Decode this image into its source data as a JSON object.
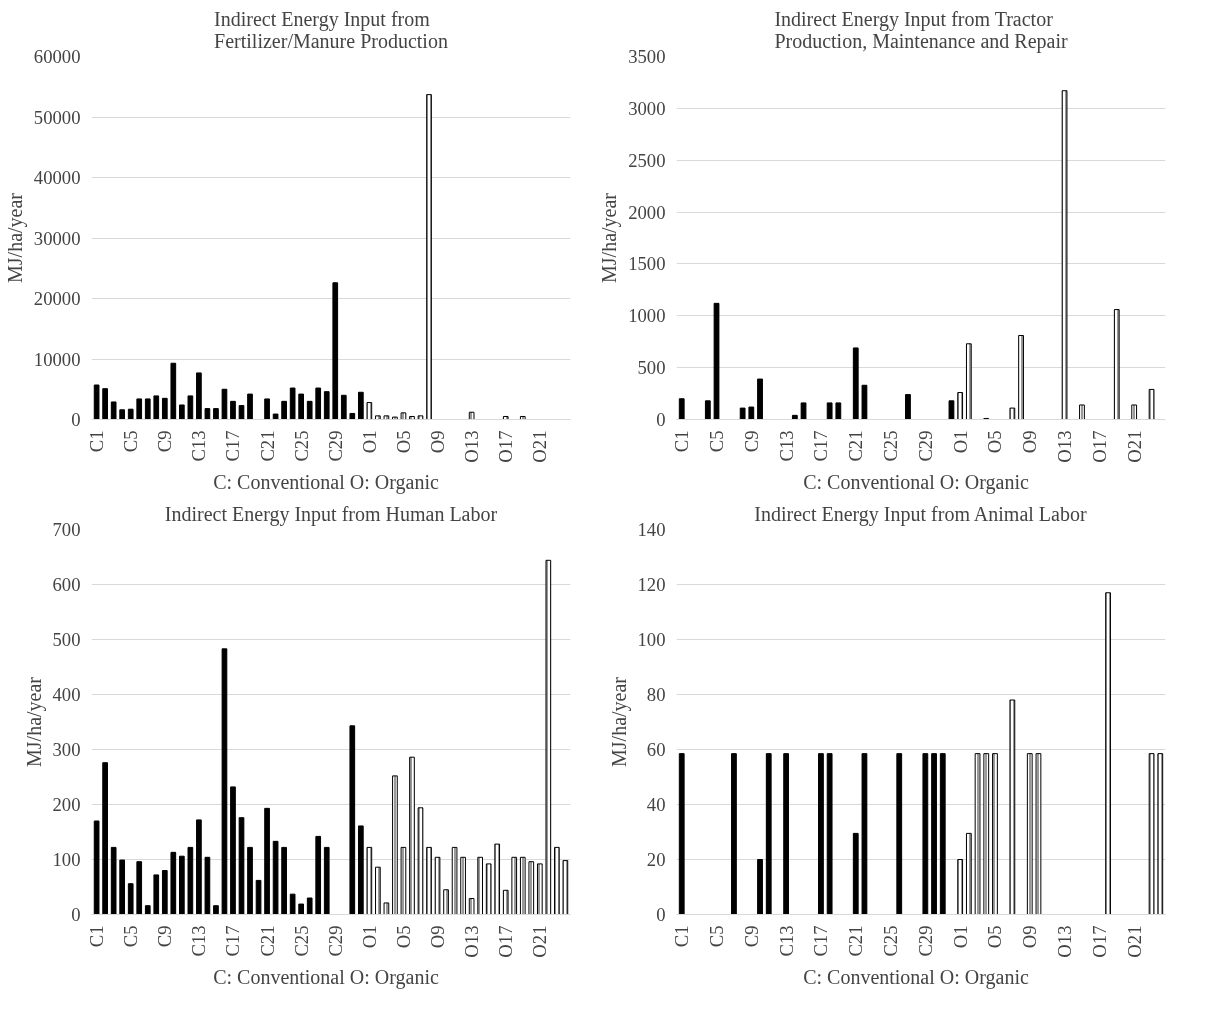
{
  "chart_data": [
    {
      "type": "bar",
      "title": "Indirect Energy Input from\nFertilizer/Manure Production",
      "xlabel": "C: Conventional   O: Organic",
      "ylabel": "MJ/ha/year",
      "categories": [
        "C1",
        null,
        null,
        null,
        "C5",
        null,
        null,
        null,
        "C9",
        null,
        null,
        null,
        "C13",
        null,
        null,
        null,
        "C17",
        null,
        null,
        null,
        "C21",
        null,
        null,
        null,
        "C25",
        null,
        null,
        null,
        "C29",
        null,
        null,
        null,
        "O1",
        null,
        null,
        null,
        "O5",
        null,
        null,
        null,
        "O9",
        null,
        null,
        null,
        "O13",
        null,
        null,
        null,
        "O17",
        null,
        null,
        null,
        "O21",
        null,
        null,
        null
      ],
      "series": [
        {
          "color": "#000000",
          "values": [
            5700,
            5100,
            2900,
            1600,
            1700,
            3400,
            3400,
            3900,
            3500,
            9300,
            2400,
            3900,
            7700,
            1800,
            1800,
            5000,
            3000,
            2300,
            4200,
            null,
            3400,
            900,
            3000,
            5200,
            4200,
            3000,
            5200,
            4600,
            22600,
            4000,
            1000,
            4500,
            null,
            null,
            null,
            null,
            null,
            null,
            null,
            null,
            null,
            null,
            null,
            null,
            null,
            null,
            null,
            null,
            null,
            null,
            null,
            null,
            null,
            null,
            null,
            null
          ]
        },
        {
          "color": "#ffffff",
          "values": [
            null,
            null,
            null,
            null,
            null,
            null,
            null,
            null,
            null,
            null,
            null,
            null,
            null,
            null,
            null,
            null,
            null,
            null,
            null,
            null,
            null,
            null,
            null,
            null,
            null,
            null,
            null,
            null,
            null,
            null,
            null,
            null,
            2800,
            600,
            600,
            400,
            1100,
            500,
            600,
            53700,
            null,
            null,
            null,
            null,
            1200,
            null,
            null,
            null,
            500,
            null,
            500,
            null,
            null,
            null,
            null,
            null
          ]
        }
      ],
      "ylim": [
        0,
        60000
      ],
      "yticks": [
        0,
        10000,
        20000,
        30000,
        40000,
        50000,
        60000
      ],
      "grid": "y"
    },
    {
      "type": "bar",
      "title": "Indirect Energy Input from Tractor\nProduction, Maintenance and Repair",
      "xlabel": "C: Conventional   O: Organic",
      "ylabel": "MJ/ha/year",
      "categories": [
        "C1",
        null,
        null,
        null,
        "C5",
        null,
        null,
        null,
        "C9",
        null,
        null,
        null,
        "C13",
        null,
        null,
        null,
        "C17",
        null,
        null,
        null,
        "C21",
        null,
        null,
        null,
        "C25",
        null,
        null,
        null,
        "C29",
        null,
        null,
        null,
        "O1",
        null,
        null,
        null,
        "O5",
        null,
        null,
        null,
        "O9",
        null,
        null,
        null,
        "O13",
        null,
        null,
        null,
        "O17",
        null,
        null,
        null,
        "O21",
        null,
        null,
        null
      ],
      "series": [
        {
          "color": "#000000",
          "values": [
            200,
            null,
            null,
            180,
            1120,
            null,
            null,
            110,
            120,
            390,
            null,
            null,
            null,
            40,
            160,
            null,
            null,
            160,
            160,
            null,
            690,
            330,
            null,
            null,
            null,
            null,
            240,
            null,
            null,
            null,
            null,
            180,
            null,
            null,
            null,
            null,
            null,
            null,
            null,
            null,
            null,
            null,
            null,
            null,
            null,
            null,
            null,
            null,
            null,
            null,
            null,
            null,
            null,
            null,
            null,
            null
          ]
        },
        {
          "color": "#ffffff",
          "values": [
            null,
            null,
            null,
            null,
            null,
            null,
            null,
            null,
            null,
            null,
            null,
            null,
            null,
            null,
            null,
            null,
            null,
            null,
            null,
            null,
            null,
            null,
            null,
            null,
            null,
            null,
            null,
            null,
            null,
            null,
            null,
            null,
            260,
            730,
            null,
            10,
            null,
            null,
            110,
            810,
            null,
            null,
            null,
            null,
            3170,
            null,
            140,
            null,
            null,
            null,
            1060,
            null,
            140,
            null,
            290,
            null
          ]
        }
      ],
      "ylim": [
        0,
        3500
      ],
      "yticks": [
        0,
        500,
        1000,
        1500,
        2000,
        2500,
        3000,
        3500
      ],
      "grid": "y"
    },
    {
      "type": "bar",
      "title": "Indirect Energy Input from Human Labor",
      "xlabel": "C: Conventional   O: Organic",
      "ylabel": "MJ/ha/year",
      "categories": [
        "C1",
        null,
        null,
        null,
        "C5",
        null,
        null,
        null,
        "C9",
        null,
        null,
        null,
        "C13",
        null,
        null,
        null,
        "C17",
        null,
        null,
        null,
        "C21",
        null,
        null,
        null,
        "C25",
        null,
        null,
        null,
        "C29",
        null,
        null,
        null,
        "O1",
        null,
        null,
        null,
        "O5",
        null,
        null,
        null,
        "O9",
        null,
        null,
        null,
        "O13",
        null,
        null,
        null,
        "O17",
        null,
        null,
        null,
        "O21",
        null,
        null,
        null
      ],
      "series": [
        {
          "color": "#000000",
          "values": [
            170,
            276,
            122,
            99,
            56,
            96,
            16,
            72,
            80,
            113,
            106,
            122,
            172,
            104,
            16,
            483,
            232,
            176,
            122,
            62,
            193,
            133,
            122,
            37,
            19,
            30,
            142,
            122,
            null,
            null,
            343,
            161,
            null,
            null,
            null,
            null,
            null,
            null,
            null,
            null,
            null,
            null,
            null,
            null,
            null,
            null,
            null,
            null,
            null,
            null,
            null,
            null,
            null,
            null,
            null,
            null
          ]
        },
        {
          "color": "#ffffff",
          "values": [
            null,
            null,
            null,
            null,
            null,
            null,
            null,
            null,
            null,
            null,
            null,
            null,
            null,
            null,
            null,
            null,
            null,
            null,
            null,
            null,
            null,
            null,
            null,
            null,
            null,
            null,
            null,
            null,
            null,
            null,
            null,
            null,
            122,
            86,
            21,
            252,
            122,
            286,
            194,
            122,
            104,
            45,
            122,
            104,
            29,
            104,
            92,
            128,
            44,
            104,
            104,
            96,
            92,
            644,
            122,
            98
          ]
        }
      ],
      "ylim": [
        0,
        700
      ],
      "yticks": [
        0,
        100,
        200,
        300,
        400,
        500,
        600,
        700
      ],
      "grid": "y"
    },
    {
      "type": "bar",
      "title": "Indirect Energy Input from Animal Labor",
      "xlabel": "C: Conventional   O: Organic",
      "ylabel": "MJ/ha/year",
      "categories": [
        "C1",
        null,
        null,
        null,
        "C5",
        null,
        null,
        null,
        "C9",
        null,
        null,
        null,
        "C13",
        null,
        null,
        null,
        "C17",
        null,
        null,
        null,
        "C21",
        null,
        null,
        null,
        "C25",
        null,
        null,
        null,
        "C29",
        null,
        null,
        null,
        "O1",
        null,
        null,
        null,
        "O5",
        null,
        null,
        null,
        "O9",
        null,
        null,
        null,
        "O13",
        null,
        null,
        null,
        "O17",
        null,
        null,
        null,
        "O21",
        null,
        null,
        null
      ],
      "series": [
        {
          "color": "#000000",
          "values": [
            58.5,
            null,
            null,
            null,
            null,
            null,
            58.5,
            null,
            null,
            20,
            58.5,
            null,
            58.5,
            null,
            null,
            null,
            58.5,
            58.5,
            null,
            null,
            29.5,
            58.5,
            null,
            null,
            null,
            58.5,
            null,
            null,
            58.5,
            58.5,
            58.5,
            null,
            null,
            null,
            null,
            null,
            null,
            null,
            null,
            null,
            null,
            null,
            null,
            null,
            null,
            null,
            null,
            null,
            null,
            null,
            null,
            null,
            null,
            null,
            null,
            null
          ]
        },
        {
          "color": "#ffffff",
          "values": [
            null,
            null,
            null,
            null,
            null,
            null,
            null,
            null,
            null,
            null,
            null,
            null,
            null,
            null,
            null,
            null,
            null,
            null,
            null,
            null,
            null,
            null,
            null,
            null,
            null,
            null,
            null,
            null,
            null,
            null,
            null,
            null,
            20,
            29.5,
            58.5,
            58.5,
            58.5,
            null,
            78,
            null,
            58.5,
            58.5,
            null,
            null,
            null,
            null,
            null,
            null,
            null,
            117,
            null,
            null,
            null,
            null,
            58.5,
            58.5
          ]
        }
      ],
      "ylim": [
        0,
        140
      ],
      "yticks": [
        0,
        20,
        40,
        60,
        80,
        100,
        120,
        140
      ],
      "grid": "y"
    }
  ]
}
